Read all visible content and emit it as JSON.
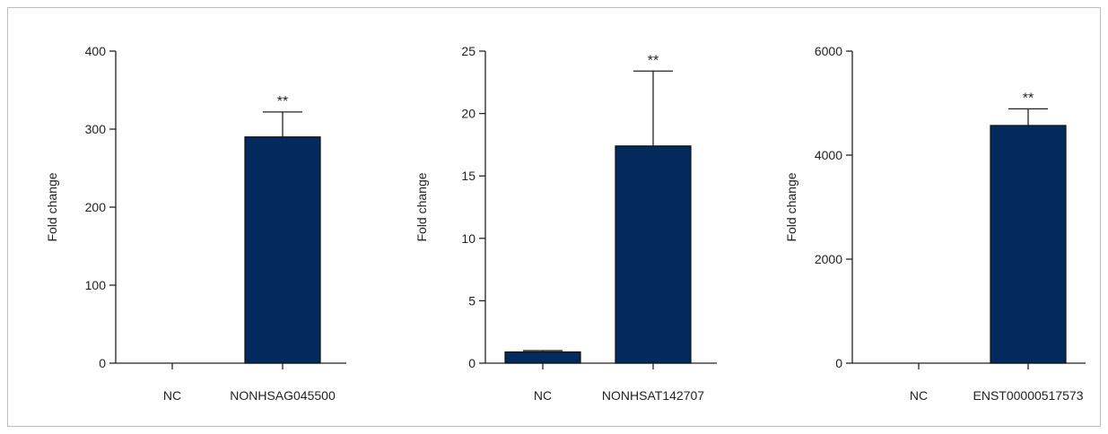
{
  "chart_data": [
    {
      "type": "bar",
      "categories": [
        "NC",
        "NONHSAG045500"
      ],
      "values": [
        0,
        290
      ],
      "errors": [
        0,
        32
      ],
      "significance": [
        "",
        "**"
      ],
      "ylabel": "Fold change",
      "ylim": [
        0,
        400
      ],
      "yticks": [
        0,
        100,
        200,
        300,
        400
      ],
      "bar_color": "#022a5c"
    },
    {
      "type": "bar",
      "categories": [
        "NC",
        "NONHSAT142707"
      ],
      "values": [
        0.9,
        17.4
      ],
      "errors": [
        0.1,
        6.0
      ],
      "significance": [
        "",
        "**"
      ],
      "ylabel": "Fold change",
      "ylim": [
        0,
        25
      ],
      "yticks": [
        0,
        5,
        10,
        15,
        20,
        25
      ],
      "bar_color": "#022a5c"
    },
    {
      "type": "bar",
      "categories": [
        "NC",
        "ENST00000517573"
      ],
      "values": [
        0,
        4570
      ],
      "errors": [
        0,
        320
      ],
      "significance": [
        "",
        "**"
      ],
      "ylabel": "Fold change",
      "ylim": [
        0,
        6000
      ],
      "yticks": [
        0,
        2000,
        4000,
        6000
      ],
      "bar_color": "#022a5c"
    }
  ]
}
